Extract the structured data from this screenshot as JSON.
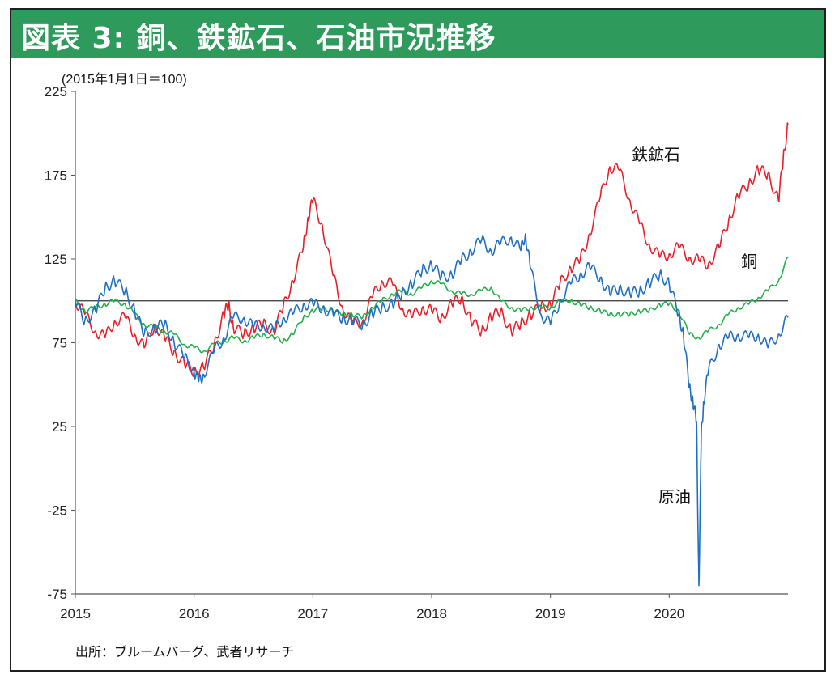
{
  "figure": {
    "title": "図表 3: 銅、鉄鉱石、石油市況推移",
    "source": "出所：ブルームバーグ、武者リサーチ"
  },
  "colors": {
    "header_bg": "#2e9a5b",
    "iron_ore": "#e8202a",
    "copper": "#22b04a",
    "crude_oil": "#1f6fc4",
    "baseline": "#333333"
  },
  "chart_data": {
    "type": "line",
    "unit_note": "(2015年1月1日＝100)",
    "xlabel": "",
    "ylabel": "",
    "x_tick_labels": [
      "2015",
      "2016",
      "2017",
      "2018",
      "2019",
      "2020"
    ],
    "y_ticks": [
      225,
      175,
      125,
      75,
      25,
      -25,
      -75
    ],
    "ylim": [
      -75,
      225
    ],
    "xlim": [
      2015.0,
      2021.0
    ],
    "reference_line": 100,
    "grid": false,
    "legend": "inline labels",
    "series": [
      {
        "name": "鉄鉱石",
        "color": "#e8202a",
        "x": [
          2015.0,
          2015.08,
          2015.17,
          2015.25,
          2015.33,
          2015.42,
          2015.5,
          2015.58,
          2015.67,
          2015.75,
          2015.83,
          2015.92,
          2016.0,
          2016.08,
          2016.17,
          2016.25,
          2016.29,
          2016.33,
          2016.42,
          2016.5,
          2016.58,
          2016.67,
          2016.75,
          2016.83,
          2016.92,
          2016.96,
          2017.0,
          2017.08,
          2017.17,
          2017.25,
          2017.33,
          2017.42,
          2017.5,
          2017.58,
          2017.67,
          2017.75,
          2017.83,
          2017.92,
          2018.0,
          2018.08,
          2018.17,
          2018.25,
          2018.33,
          2018.42,
          2018.5,
          2018.58,
          2018.67,
          2018.75,
          2018.83,
          2018.92,
          2019.0,
          2019.08,
          2019.17,
          2019.25,
          2019.33,
          2019.42,
          2019.5,
          2019.58,
          2019.67,
          2019.75,
          2019.83,
          2019.92,
          2020.0,
          2020.08,
          2020.17,
          2020.25,
          2020.33,
          2020.42,
          2020.5,
          2020.58,
          2020.67,
          2020.75,
          2020.83,
          2020.92,
          2020.96,
          2021.0
        ],
        "values": [
          100,
          92,
          82,
          78,
          88,
          90,
          80,
          72,
          86,
          78,
          70,
          62,
          58,
          60,
          74,
          92,
          98,
          84,
          80,
          84,
          86,
          82,
          96,
          112,
          132,
          150,
          160,
          145,
          115,
          96,
          86,
          88,
          102,
          112,
          110,
          96,
          90,
          96,
          94,
          90,
          98,
          102,
          88,
          82,
          90,
          94,
          82,
          86,
          92,
          96,
          98,
          110,
          120,
          124,
          140,
          162,
          180,
          178,
          160,
          146,
          134,
          126,
          128,
          132,
          126,
          124,
          122,
          132,
          148,
          162,
          170,
          178,
          176,
          160,
          185,
          205
        ]
      },
      {
        "name": "銅",
        "color": "#22b04a",
        "x": [
          2015.0,
          2015.08,
          2015.17,
          2015.25,
          2015.33,
          2015.42,
          2015.5,
          2015.58,
          2015.67,
          2015.75,
          2015.83,
          2015.92,
          2016.0,
          2016.08,
          2016.17,
          2016.25,
          2016.33,
          2016.42,
          2016.5,
          2016.58,
          2016.67,
          2016.75,
          2016.83,
          2016.92,
          2017.0,
          2017.08,
          2017.17,
          2017.25,
          2017.33,
          2017.42,
          2017.5,
          2017.58,
          2017.67,
          2017.75,
          2017.83,
          2017.92,
          2018.0,
          2018.08,
          2018.17,
          2018.25,
          2018.33,
          2018.42,
          2018.5,
          2018.58,
          2018.67,
          2018.75,
          2018.83,
          2018.92,
          2019.0,
          2019.08,
          2019.17,
          2019.25,
          2019.33,
          2019.42,
          2019.5,
          2019.58,
          2019.67,
          2019.75,
          2019.83,
          2019.92,
          2020.0,
          2020.08,
          2020.17,
          2020.25,
          2020.33,
          2020.42,
          2020.5,
          2020.58,
          2020.67,
          2020.75,
          2020.83,
          2020.92,
          2021.0
        ],
        "values": [
          100,
          94,
          96,
          98,
          100,
          98,
          92,
          86,
          84,
          82,
          80,
          74,
          72,
          70,
          74,
          76,
          78,
          76,
          78,
          80,
          78,
          76,
          80,
          90,
          94,
          96,
          94,
          92,
          92,
          90,
          96,
          100,
          104,
          106,
          104,
          108,
          112,
          110,
          106,
          104,
          104,
          106,
          108,
          100,
          96,
          94,
          96,
          96,
          96,
          100,
          100,
          98,
          96,
          94,
          92,
          92,
          92,
          94,
          94,
          98,
          98,
          94,
          80,
          78,
          82,
          86,
          92,
          96,
          98,
          102,
          106,
          112,
          126
        ]
      },
      {
        "name": "原油",
        "color": "#1f6fc4",
        "x": [
          2015.0,
          2015.08,
          2015.17,
          2015.25,
          2015.33,
          2015.42,
          2015.5,
          2015.58,
          2015.67,
          2015.75,
          2015.83,
          2015.92,
          2016.0,
          2016.04,
          2016.08,
          2016.17,
          2016.25,
          2016.33,
          2016.42,
          2016.5,
          2016.58,
          2016.67,
          2016.75,
          2016.83,
          2016.92,
          2017.0,
          2017.08,
          2017.17,
          2017.25,
          2017.33,
          2017.42,
          2017.5,
          2017.58,
          2017.67,
          2017.75,
          2017.83,
          2017.92,
          2018.0,
          2018.08,
          2018.17,
          2018.25,
          2018.33,
          2018.42,
          2018.5,
          2018.58,
          2018.67,
          2018.75,
          2018.79,
          2018.83,
          2018.92,
          2019.0,
          2019.08,
          2019.17,
          2019.25,
          2019.33,
          2019.42,
          2019.5,
          2019.58,
          2019.67,
          2019.75,
          2019.83,
          2019.92,
          2020.0,
          2020.08,
          2020.12,
          2020.17,
          2020.2,
          2020.23,
          2020.25,
          2020.27,
          2020.29,
          2020.33,
          2020.42,
          2020.5,
          2020.58,
          2020.67,
          2020.75,
          2020.83,
          2020.92,
          2021.0
        ],
        "values": [
          100,
          88,
          94,
          108,
          112,
          106,
          94,
          80,
          84,
          86,
          76,
          66,
          58,
          52,
          56,
          70,
          78,
          90,
          90,
          84,
          86,
          82,
          90,
          92,
          98,
          98,
          96,
          92,
          90,
          88,
          86,
          92,
          96,
          98,
          104,
          110,
          118,
          122,
          114,
          116,
          124,
          130,
          136,
          130,
          134,
          138,
          130,
          140,
          120,
          92,
          86,
          100,
          110,
          116,
          120,
          114,
          104,
          108,
          104,
          106,
          110,
          116,
          110,
          92,
          80,
          48,
          40,
          28,
          -70,
          20,
          40,
          58,
          74,
          78,
          80,
          78,
          80,
          72,
          80,
          90
        ]
      }
    ],
    "series_labels": [
      "鉄鉱石",
      "銅",
      "原油"
    ]
  }
}
